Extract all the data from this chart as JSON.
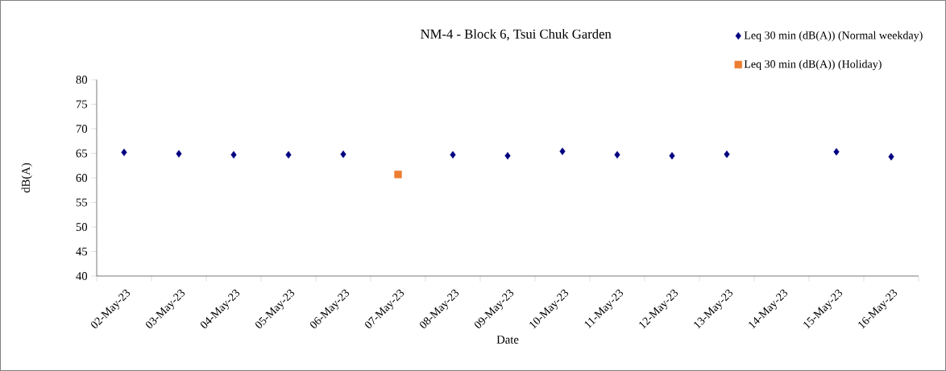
{
  "chart_data": {
    "type": "scatter",
    "title": "NM-4 - Block 6, Tsui Chuk Garden",
    "xlabel": "Date",
    "ylabel": "dB(A)",
    "categories": [
      "02-May-23",
      "03-May-23",
      "04-May-23",
      "05-May-23",
      "06-May-23",
      "07-May-23",
      "08-May-23",
      "09-May-23",
      "10-May-23",
      "11-May-23",
      "12-May-23",
      "13-May-23",
      "14-May-23",
      "15-May-23",
      "16-May-23"
    ],
    "series": [
      {
        "name": "Leq 30 min (dB(A)) (Normal weekday)",
        "color": "#000080",
        "marker": "diamond",
        "values": [
          65.2,
          64.9,
          64.7,
          64.7,
          64.8,
          null,
          64.7,
          64.5,
          65.4,
          64.7,
          64.5,
          64.8,
          null,
          65.3,
          64.3
        ]
      },
      {
        "name": "Leq 30 min (dB(A)) (Holiday)",
        "color": "#ed7d31",
        "marker": "square",
        "values": [
          null,
          null,
          null,
          null,
          null,
          60.7,
          null,
          null,
          null,
          null,
          null,
          null,
          null,
          null,
          null
        ]
      }
    ],
    "ylim": [
      40,
      80
    ],
    "yticks": [
      40,
      45,
      50,
      55,
      60,
      65,
      70,
      75,
      80
    ],
    "grid": false,
    "legend": "top right"
  }
}
